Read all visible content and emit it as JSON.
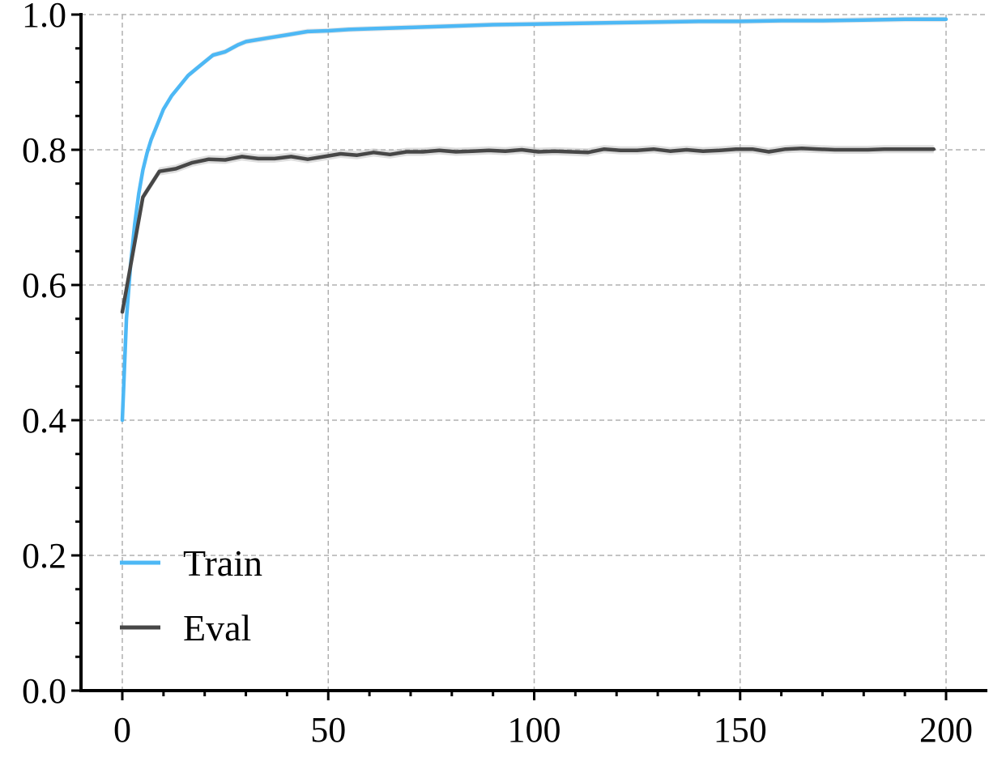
{
  "chart_data": {
    "type": "line",
    "title": "",
    "xlabel": "",
    "ylabel": "",
    "xlim": [
      -10,
      210
    ],
    "ylim": [
      0.0,
      1.0
    ],
    "grid": true,
    "legend_position": "lower-left",
    "x_ticks": [
      0,
      50,
      100,
      150,
      200
    ],
    "x_tick_labels": [
      "0",
      "50",
      "100",
      "150",
      "200"
    ],
    "y_ticks": [
      0.0,
      0.2,
      0.4,
      0.6,
      0.8,
      1.0
    ],
    "y_tick_labels": [
      "0.0",
      "0.2",
      "0.4",
      "0.6",
      "0.8",
      "1.0"
    ],
    "series": [
      {
        "name": "Train",
        "color": "#4db8f5",
        "x": [
          0,
          1,
          2,
          3,
          4,
          5,
          6,
          7,
          8,
          9,
          10,
          12,
          14,
          16,
          18,
          20,
          22,
          25,
          28,
          30,
          35,
          40,
          45,
          50,
          55,
          60,
          70,
          80,
          90,
          100,
          110,
          120,
          130,
          140,
          150,
          160,
          170,
          180,
          190,
          200
        ],
        "y": [
          0.4,
          0.55,
          0.63,
          0.69,
          0.735,
          0.77,
          0.795,
          0.815,
          0.83,
          0.845,
          0.86,
          0.88,
          0.895,
          0.91,
          0.92,
          0.93,
          0.94,
          0.945,
          0.955,
          0.96,
          0.965,
          0.97,
          0.975,
          0.976,
          0.978,
          0.979,
          0.981,
          0.983,
          0.985,
          0.986,
          0.987,
          0.988,
          0.989,
          0.99,
          0.99,
          0.991,
          0.991,
          0.992,
          0.993,
          0.993
        ]
      },
      {
        "name": "Eval",
        "color": "#474747",
        "x": [
          0,
          5,
          9,
          13,
          17,
          21,
          25,
          29,
          33,
          37,
          41,
          45,
          49,
          53,
          57,
          61,
          65,
          69,
          73,
          77,
          81,
          85,
          89,
          93,
          97,
          101,
          105,
          109,
          113,
          117,
          121,
          125,
          129,
          133,
          137,
          141,
          145,
          149,
          153,
          157,
          161,
          165,
          169,
          173,
          177,
          181,
          185,
          189,
          193,
          197
        ],
        "y": [
          0.56,
          0.73,
          0.768,
          0.772,
          0.781,
          0.786,
          0.785,
          0.79,
          0.787,
          0.787,
          0.79,
          0.786,
          0.79,
          0.794,
          0.792,
          0.796,
          0.793,
          0.797,
          0.797,
          0.799,
          0.797,
          0.798,
          0.799,
          0.798,
          0.8,
          0.797,
          0.798,
          0.797,
          0.796,
          0.801,
          0.799,
          0.799,
          0.801,
          0.798,
          0.8,
          0.798,
          0.799,
          0.801,
          0.801,
          0.797,
          0.801,
          0.802,
          0.801,
          0.8,
          0.8,
          0.8,
          0.801,
          0.801,
          0.801,
          0.801
        ]
      }
    ]
  }
}
